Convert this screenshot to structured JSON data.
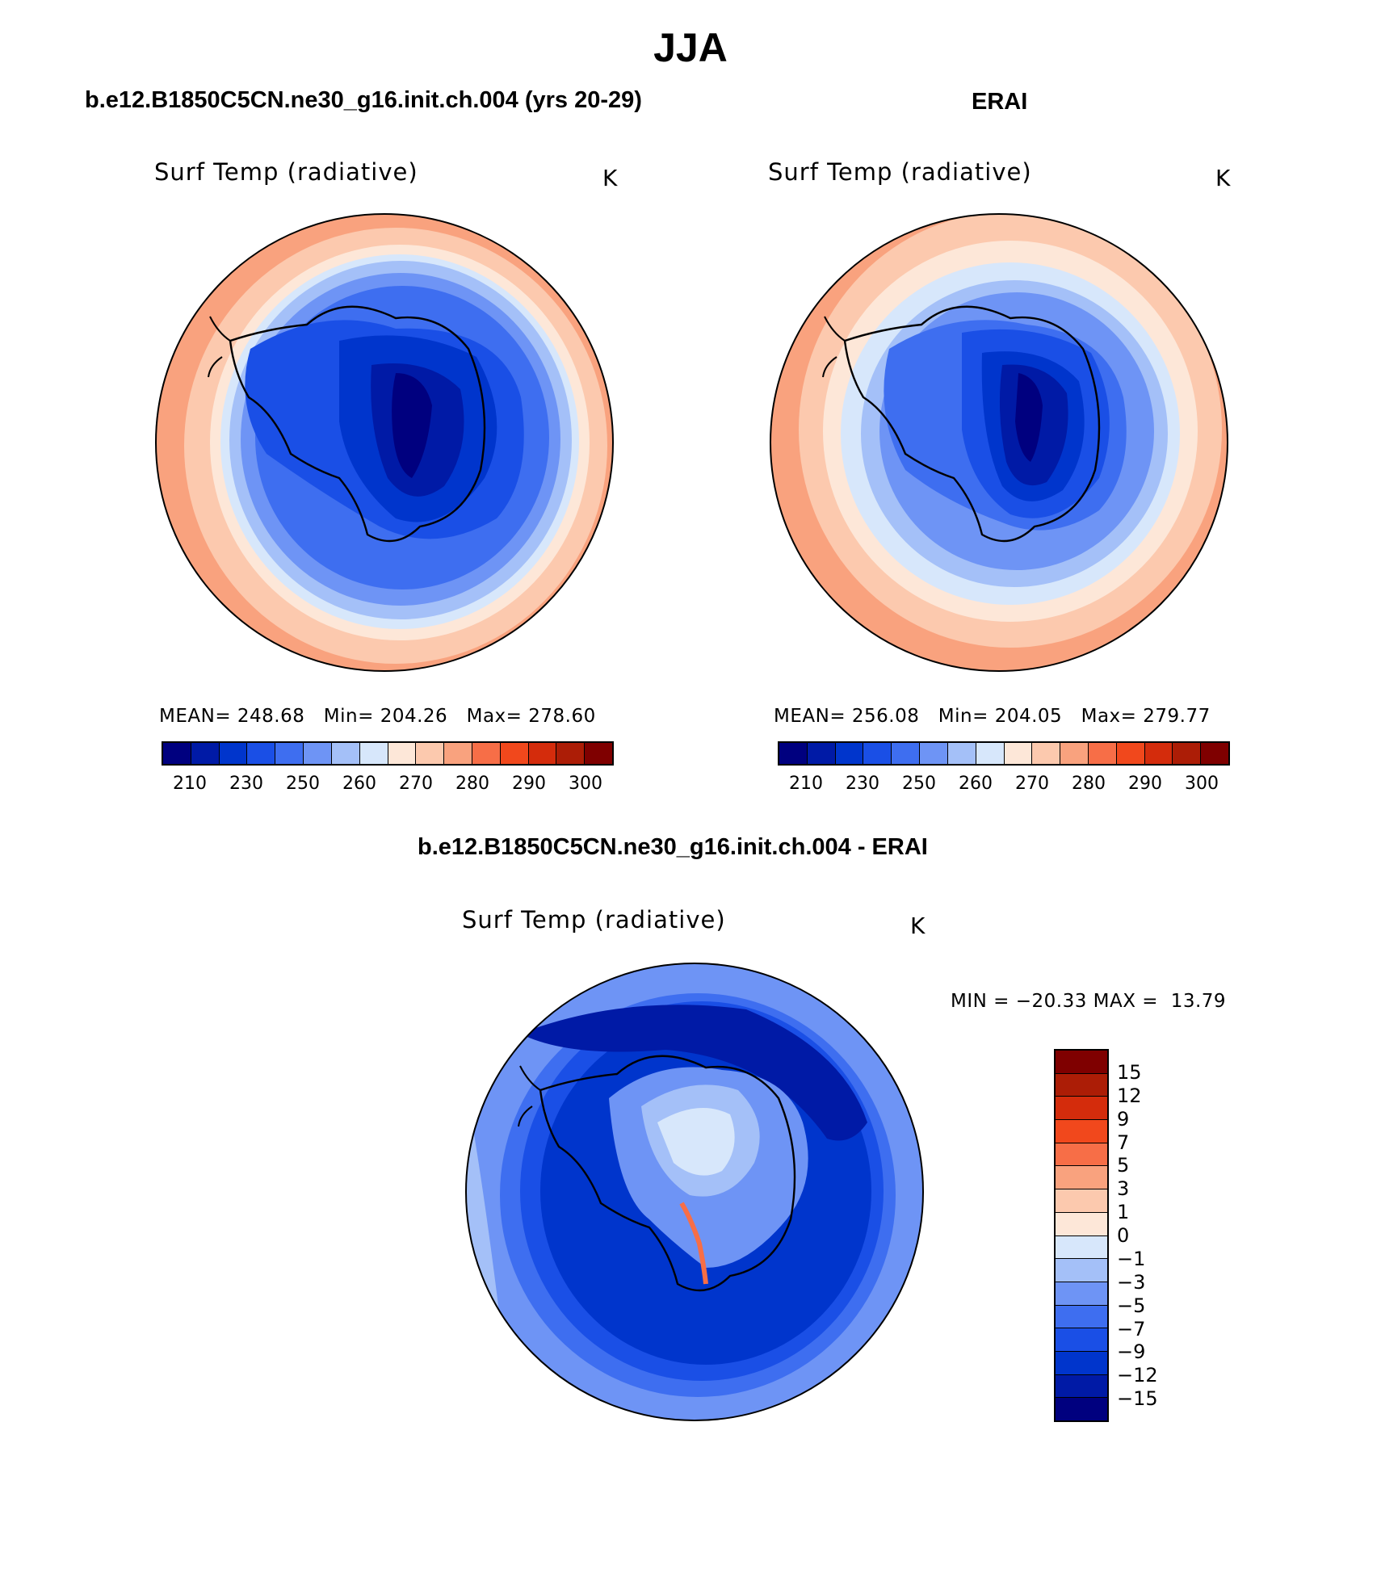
{
  "title": "JJA",
  "colors": {
    "abs_scale": [
      "#00007f",
      "#001aa6",
      "#0035cc",
      "#1a4fe6",
      "#3e6ef0",
      "#6e94f5",
      "#a4c0f8",
      "#d7e7fb",
      "#fde7d8",
      "#fcc9ae",
      "#f9a27e",
      "#f76e47",
      "#f1481c",
      "#d42c0c",
      "#ac1d06",
      "#7f0000"
    ],
    "diff_scale": [
      "#7f0000",
      "#ac1d06",
      "#d42c0c",
      "#f1481c",
      "#f76e47",
      "#f9a27e",
      "#fcc9ae",
      "#fde7d8",
      "#d7e7fb",
      "#a4c0f8",
      "#6e94f5",
      "#3e6ef0",
      "#1a4fe6",
      "#0035cc",
      "#001aa6",
      "#00007f"
    ]
  },
  "panels": {
    "model": {
      "title": "b.e12.B1850C5CN.ne30_g16.init.ch.004 (yrs 20-29)",
      "variable": "Surf Temp (radiative)",
      "units": "K",
      "stats": "MEAN= 248.68   Min= 204.26   Max= 278.60",
      "colorbar_labels": [
        "210",
        "230",
        "250",
        "260",
        "270",
        "280",
        "290",
        "300"
      ]
    },
    "obs": {
      "title": "ERAI",
      "variable": "Surf Temp (radiative)",
      "units": "K",
      "stats": "MEAN= 256.08   Min= 204.05   Max= 279.77",
      "colorbar_labels": [
        "210",
        "230",
        "250",
        "260",
        "270",
        "280",
        "290",
        "300"
      ]
    },
    "diff": {
      "title": "b.e12.B1850C5CN.ne30_g16.init.ch.004 - ERAI",
      "variable": "Surf Temp (radiative)",
      "units": "K",
      "minmax": "MIN = −20.33 MAX =  13.79",
      "colorbar_labels": [
        "15",
        "12",
        "9",
        "7",
        "5",
        "3",
        "1",
        "0",
        "−1",
        "−3",
        "−5",
        "−7",
        "−9",
        "−12",
        "−15"
      ]
    }
  },
  "chart_data": [
    {
      "type": "heatmap",
      "title": "b.e12.B1850C5CN.ne30_g16.init.ch.004 (yrs 20-29)",
      "projection": "south polar stereographic",
      "variable": "Surf Temp (radiative)",
      "units": "K",
      "mean": 248.68,
      "min": 204.26,
      "max": 278.6,
      "levels": [
        210,
        215,
        220,
        225,
        230,
        235,
        240,
        245,
        250,
        255,
        260,
        265,
        270,
        275,
        280,
        285,
        290,
        295,
        300
      ],
      "colorbar_ticks": [
        210,
        230,
        250,
        260,
        270,
        280,
        290,
        300
      ]
    },
    {
      "type": "heatmap",
      "title": "ERAI",
      "projection": "south polar stereographic",
      "variable": "Surf Temp (radiative)",
      "units": "K",
      "mean": 256.08,
      "min": 204.05,
      "max": 279.77,
      "levels": [
        210,
        215,
        220,
        225,
        230,
        235,
        240,
        245,
        250,
        255,
        260,
        265,
        270,
        275,
        280,
        285,
        290,
        295,
        300
      ],
      "colorbar_ticks": [
        210,
        230,
        250,
        260,
        270,
        280,
        290,
        300
      ]
    },
    {
      "type": "heatmap",
      "title": "b.e12.B1850C5CN.ne30_g16.init.ch.004 - ERAI",
      "projection": "south polar stereographic",
      "variable": "Surf Temp (radiative)",
      "units": "K",
      "min": -20.33,
      "max": 13.79,
      "levels": [
        -15,
        -12,
        -9,
        -7,
        -5,
        -3,
        -1,
        0,
        1,
        3,
        5,
        7,
        9,
        12,
        15
      ]
    }
  ]
}
